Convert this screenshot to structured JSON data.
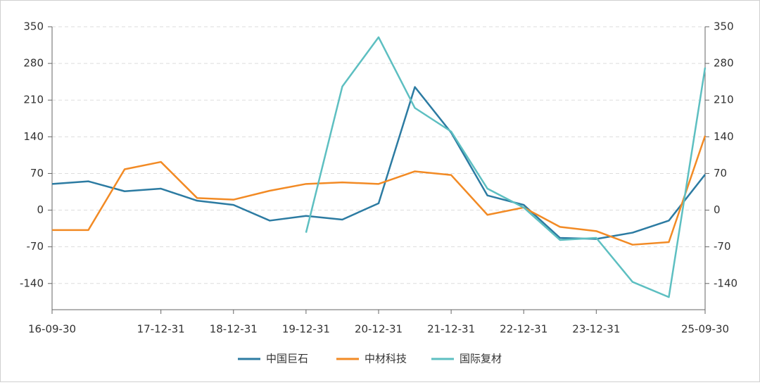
{
  "chart_data": {
    "type": "line",
    "categories": [
      "16-09-30",
      null,
      null,
      "17-12-31",
      null,
      "18-12-31",
      null,
      "19-12-31",
      null,
      "20-12-31",
      null,
      "21-12-31",
      null,
      "22-12-31",
      null,
      "23-12-31",
      null,
      null,
      "25-09-30"
    ],
    "series": [
      {
        "name": "中国巨石",
        "color": "#2c7ba2",
        "values": [
          50,
          55,
          36,
          41,
          18,
          10,
          -20,
          -11,
          -18,
          13,
          235,
          148,
          28,
          10,
          -53,
          -55,
          -43,
          -20,
          68
        ]
      },
      {
        "name": "中材科技",
        "color": "#f28a24",
        "values": [
          -38,
          -38,
          78,
          92,
          23,
          20,
          37,
          50,
          53,
          50,
          74,
          67,
          -9,
          5,
          -32,
          -40,
          -66,
          -61,
          142
        ]
      },
      {
        "name": "国际复材",
        "color": "#5dbfc1",
        "axis": "y2",
        "values": [
          null,
          null,
          null,
          null,
          null,
          null,
          null,
          -43,
          236,
          330,
          195,
          150,
          41,
          5,
          -57,
          -53,
          -137,
          -166,
          272
        ]
      }
    ],
    "ylim": [
      -190,
      350
    ],
    "yticks": [
      -140,
      -70,
      0,
      70,
      140,
      210,
      280,
      350
    ],
    "y2lim": [
      -190,
      350
    ],
    "y2ticks": [
      -140,
      -70,
      0,
      70,
      140,
      210,
      280,
      350
    ],
    "grid": true,
    "legend": "bottom"
  }
}
